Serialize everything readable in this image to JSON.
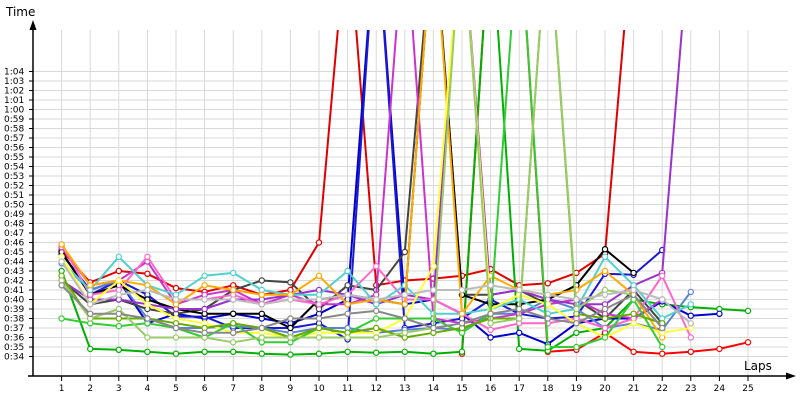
{
  "chart_data": {
    "type": "line",
    "title": "",
    "ylabel": "Time",
    "xlabel": "Laps",
    "x": [
      1,
      2,
      3,
      4,
      5,
      6,
      7,
      8,
      9,
      10,
      11,
      12,
      13,
      14,
      15,
      16,
      17,
      18,
      19,
      20,
      21,
      22,
      23,
      24,
      25
    ],
    "xlim": [
      0,
      25.4
    ],
    "ylim_seconds": [
      33,
      66
    ],
    "y_ticks": [
      "0:34",
      "0:35",
      "0:36",
      "0:37",
      "0:38",
      "0:39",
      "0:40",
      "0:41",
      "0:42",
      "0:43",
      "0:44",
      "0:45",
      "0:46",
      "0:47",
      "0:48",
      "0:49",
      "0:50",
      "0:51",
      "0:52",
      "0:53",
      "0:54",
      "0:55",
      "0:56",
      "0:57",
      "0:58",
      "0:59",
      "1:00",
      "1:01",
      "1:02",
      "1:03",
      "1:04"
    ],
    "grid": true,
    "legend": "none",
    "series": [
      {
        "color": "#e00000",
        "values": [
          45.2,
          41.8,
          43.0,
          42.7,
          41.2,
          40.8,
          41.5,
          40.5,
          41.0,
          46.0,
          80,
          41.5,
          42.0,
          42.2,
          42.5,
          43.2,
          41.5,
          41.7,
          42.8,
          44.8,
          80,
          null,
          null,
          null,
          null
        ]
      },
      {
        "color": "#ff0000",
        "values": [
          null,
          null,
          null,
          null,
          null,
          null,
          null,
          null,
          null,
          null,
          null,
          null,
          null,
          null,
          34.3,
          80,
          80,
          34.5,
          34.7,
          36.5,
          34.5,
          34.3,
          34.5,
          34.8,
          35.5
        ]
      },
      {
        "color": "#00b000",
        "values": [
          43.0,
          34.8,
          34.7,
          34.5,
          34.3,
          34.5,
          34.5,
          34.3,
          34.2,
          34.3,
          34.5,
          34.4,
          34.5,
          34.3,
          34.5,
          80,
          34.8,
          34.6,
          36.5,
          37.0,
          40.0,
          39.5,
          39.2,
          39.0,
          38.8
        ]
      },
      {
        "color": "#0000cc",
        "values": [
          44.8,
          41.0,
          42.0,
          37.5,
          38.5,
          38.0,
          38.5,
          38.0,
          37.5,
          38.5,
          40.0,
          80,
          39.5,
          40.0,
          38.5,
          36.0,
          36.5,
          35.3,
          37.5,
          38.0,
          38.0,
          39.8,
          38.3,
          38.5,
          null
        ]
      },
      {
        "color": "#1a1ad0",
        "values": [
          45.0,
          40.5,
          42.0,
          40.5,
          38.2,
          38.2,
          37.0,
          37.0,
          37.0,
          37.5,
          35.8,
          80,
          37.0,
          37.5,
          38.0,
          40.0,
          38.5,
          38.0,
          38.2,
          42.7,
          42.6,
          45.2,
          null,
          null,
          null
        ]
      },
      {
        "color": "#5e82d0",
        "values": [
          43.8,
          41.0,
          42.0,
          38.0,
          37.0,
          37.0,
          37.2,
          37.0,
          36.5,
          37.0,
          37.0,
          36.5,
          36.8,
          37.0,
          36.8,
          38.5,
          38.5,
          40.0,
          39.0,
          37.0,
          37.5,
          36.8,
          40.8,
          null,
          null
        ]
      },
      {
        "color": "#444444",
        "values": [
          42.0,
          39.5,
          40.0,
          39.0,
          38.5,
          39.0,
          41.0,
          42.0,
          41.8,
          39.0,
          41.5,
          41.0,
          45.0,
          80,
          40.5,
          40.5,
          41.0,
          39.5,
          40.0,
          38.0,
          41.0,
          37.5,
          null,
          null,
          null
        ]
      },
      {
        "color": "#000000",
        "values": [
          45.0,
          40.5,
          41.5,
          40.0,
          39.0,
          38.5,
          38.5,
          38.5,
          37.0,
          40.0,
          40.5,
          40.0,
          39.5,
          80,
          40.5,
          39.5,
          39.5,
          40.0,
          41.5,
          45.3,
          42.8,
          null,
          null,
          null,
          null
        ]
      },
      {
        "color": "#cc33cc",
        "values": [
          45.5,
          41.5,
          42.0,
          44.0,
          39.5,
          40.5,
          41.0,
          39.5,
          40.5,
          39.5,
          39.5,
          40.5,
          80,
          38.0,
          37.5,
          38.0,
          38.5,
          39.5,
          40.0,
          38.5,
          38.0,
          40.0,
          null,
          null,
          null
        ]
      },
      {
        "color": "#9933cc",
        "values": [
          42.0,
          40.0,
          40.0,
          39.5,
          39.0,
          39.0,
          40.0,
          40.0,
          40.5,
          41.0,
          40.5,
          39.5,
          40.5,
          40.0,
          80,
          40.5,
          41.0,
          40.0,
          39.5,
          39.5,
          41.5,
          42.8,
          80,
          null,
          null
        ]
      },
      {
        "color": "#ff66cc",
        "values": [
          45.8,
          40.5,
          41.0,
          44.5,
          40.0,
          40.0,
          40.5,
          39.5,
          40.0,
          39.5,
          40.5,
          43.5,
          40.0,
          40.0,
          38.5,
          36.8,
          37.5,
          37.5,
          38.0,
          37.0,
          38.0,
          42.5,
          36.0,
          null,
          null
        ]
      },
      {
        "color": "#50d0d0",
        "values": [
          44.0,
          41.0,
          44.5,
          41.5,
          40.5,
          42.5,
          42.8,
          41.0,
          40.5,
          40.5,
          43.0,
          39.5,
          41.5,
          38.5,
          38.5,
          39.0,
          40.0,
          38.5,
          39.0,
          44.5,
          41.5,
          38.0,
          39.5,
          null,
          null
        ]
      },
      {
        "color": "#ffaa00",
        "values": [
          45.8,
          41.5,
          42.0,
          41.5,
          39.5,
          41.5,
          41.0,
          40.5,
          40.5,
          42.5,
          39.5,
          40.0,
          39.5,
          80,
          38.5,
          42.5,
          41.0,
          40.5,
          41.0,
          43.0,
          40.5,
          36.0,
          null,
          null,
          null
        ]
      },
      {
        "color": "#ffff33",
        "values": [
          44.5,
          39.5,
          42.0,
          39.5,
          38.0,
          37.5,
          36.5,
          36.5,
          36.0,
          36.5,
          36.5,
          36.5,
          38.0,
          43.5,
          80,
          39.0,
          40.5,
          39.5,
          37.5,
          36.0,
          37.5,
          36.5,
          37.0,
          null,
          null
        ]
      },
      {
        "color": "#33cc33",
        "values": [
          38.0,
          37.5,
          37.2,
          37.5,
          37.0,
          36.0,
          37.5,
          35.5,
          35.5,
          37.0,
          36.5,
          38.0,
          38.0,
          38.0,
          36.5,
          38.5,
          80,
          35.0,
          35.0,
          36.0,
          40.0,
          35.0,
          null,
          null,
          null
        ]
      },
      {
        "color": "#66aa00",
        "values": [
          42.5,
          38.0,
          38.0,
          38.0,
          37.5,
          37.0,
          37.5,
          37.0,
          36.0,
          37.0,
          36.5,
          37.0,
          36.0,
          36.5,
          37.0,
          38.0,
          38.0,
          80,
          38.5,
          38.0,
          38.5,
          37.5,
          null,
          null,
          null
        ]
      },
      {
        "color": "#99cc66",
        "values": [
          42.0,
          38.0,
          39.0,
          36.0,
          36.0,
          36.0,
          35.5,
          36.0,
          36.0,
          36.0,
          36.0,
          36.0,
          36.5,
          37.0,
          80,
          37.5,
          38.0,
          80,
          39.0,
          41.0,
          40.5,
          37.0,
          null,
          null,
          null
        ]
      },
      {
        "color": "#888888",
        "values": [
          41.5,
          38.5,
          38.5,
          38.0,
          37.0,
          36.5,
          36.5,
          37.0,
          38.0,
          38.0,
          38.5,
          38.8,
          38.0,
          37.0,
          37.5,
          38.5,
          39.0,
          38.0,
          37.5,
          39.0,
          40.5,
          37.0,
          null,
          null,
          null
        ]
      },
      {
        "color": "#bbbbbb",
        "values": [
          44.0,
          39.5,
          40.5,
          41.0,
          40.0,
          40.0,
          40.0,
          39.5,
          40.0,
          40.0,
          40.5,
          40.0,
          40.5,
          41.0,
          41.0,
          41.5,
          41.0,
          40.5,
          40.0,
          40.5,
          41.0,
          40.0,
          37.5,
          null,
          null
        ]
      }
    ]
  }
}
